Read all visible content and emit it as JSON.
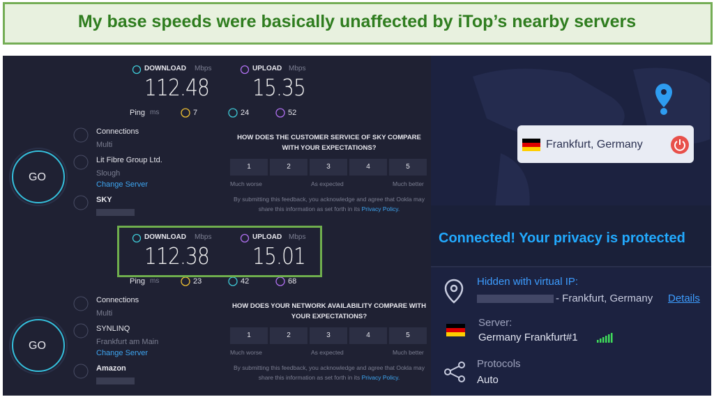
{
  "header": {
    "title": "My base speeds were basically unaffected by iTop’s nearby servers"
  },
  "speedtests": [
    {
      "download_label": "DOWNLOAD",
      "upload_label": "UPLOAD",
      "unit": "Mbps",
      "download": "112.48",
      "upload": "15.35",
      "ping_label": "Ping",
      "ping_unit": "ms",
      "ping": "7",
      "ping_down": "24",
      "ping_up": "52",
      "go": "GO",
      "connections_label": "Connections",
      "connections_value": "Multi",
      "isp": "Lit Fibre Group Ltd.",
      "isp_location": "Slough",
      "change_server": "Change Server",
      "provider": "SKY",
      "question": "HOW DOES THE CUSTOMER SERVICE OF SKY COMPARE WITH YOUR EXPECTATIONS?",
      "ratings": [
        "1",
        "2",
        "3",
        "4",
        "5"
      ],
      "scale": [
        "Much worse",
        "As expected",
        "Much better"
      ],
      "disclaimer": "By submitting this feedback, you acknowledge and agree that Ookla may share this information as set forth in its",
      "privacy": "Privacy Policy."
    },
    {
      "download_label": "DOWNLOAD",
      "upload_label": "UPLOAD",
      "unit": "Mbps",
      "download": "112.38",
      "upload": "15.01",
      "ping_label": "Ping",
      "ping_unit": "ms",
      "ping": "23",
      "ping_down": "42",
      "ping_up": "68",
      "go": "GO",
      "connections_label": "Connections",
      "connections_value": "Multi",
      "isp": "SYNLINQ",
      "isp_location": "Frankfurt am Main",
      "change_server": "Change Server",
      "provider": "Amazon",
      "question": "HOW DOES YOUR NETWORK AVAILABILITY COMPARE WITH YOUR EXPECTATIONS?",
      "ratings": [
        "1",
        "2",
        "3",
        "4",
        "5"
      ],
      "scale": [
        "Much worse",
        "As expected",
        "Much better"
      ],
      "disclaimer": "By submitting this feedback, you acknowledge and agree that Ookla may share this information as set forth in its",
      "privacy": "Privacy Policy."
    }
  ],
  "vpn": {
    "location": "Frankfurt, Germany",
    "status": "Connected! Your privacy is protected",
    "hidden_label": "Hidden with virtual IP:",
    "ip_location": "- Frankfurt, Germany",
    "details": "Details",
    "server_label": "Server:",
    "server": "Germany Frankfurt#1",
    "protocols_label": "Protocols",
    "protocol": "Auto"
  }
}
